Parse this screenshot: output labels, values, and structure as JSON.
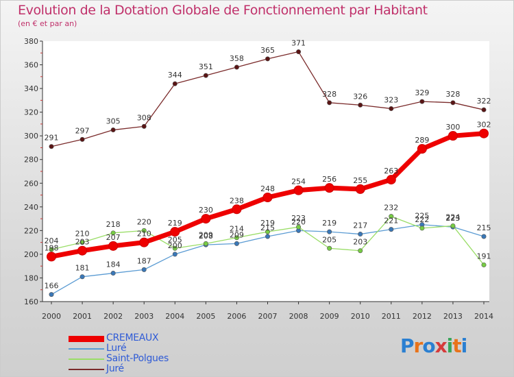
{
  "header": {
    "title": "Evolution de la Dotation Globale de Fonctionnement par Habitant",
    "subtitle": "(en € et par an)"
  },
  "brand": {
    "text": "Proxiti",
    "letters": [
      "P",
      "r",
      "o",
      "x",
      "i",
      "t",
      "i"
    ],
    "colors": [
      "#2a7fd1",
      "#e8731a",
      "#2a7fd1",
      "#d63a3a",
      "#3aa55a",
      "#e8731a",
      "#2a7fd1"
    ]
  },
  "chart_data": {
    "type": "line",
    "title": "Evolution de la Dotation Globale de Fonctionnement par Habitant",
    "subtitle": "(en € et par an)",
    "xlabel": "",
    "ylabel": "",
    "x": [
      "2000",
      "2001",
      "2002",
      "2003",
      "2004",
      "2005",
      "2006",
      "2007",
      "2008",
      "2009",
      "2010",
      "2011",
      "2012",
      "2013",
      "2014"
    ],
    "ylim": [
      160,
      380
    ],
    "yticks": [
      160,
      180,
      200,
      220,
      240,
      260,
      280,
      300,
      320,
      340,
      360,
      380
    ],
    "grid": false,
    "legend_position": "bottom-left",
    "series": [
      {
        "name": "CREMEAUX",
        "color": "#ee0000",
        "marker": "#ee0000",
        "emphasis": true,
        "values": [
          198,
          203,
          207,
          210,
          219,
          230,
          238,
          248,
          254,
          256,
          255,
          263,
          289,
          300,
          302
        ]
      },
      {
        "name": "Luré",
        "color": "#5a9bd3",
        "marker": "#3a78b8",
        "emphasis": false,
        "values": [
          166,
          181,
          184,
          187,
          200,
          208,
          209,
          215,
          220,
          219,
          217,
          221,
          225,
          223,
          215
        ]
      },
      {
        "name": "Saint-Polgues",
        "color": "#99dd66",
        "marker": "#77cc44",
        "emphasis": false,
        "values": [
          204,
          210,
          218,
          220,
          205,
          209,
          214,
          219,
          223,
          205,
          203,
          232,
          222,
          224,
          191
        ]
      },
      {
        "name": "Juré",
        "color": "#7a2a2a",
        "marker": "#5a1515",
        "emphasis": false,
        "values": [
          291,
          297,
          305,
          308,
          344,
          351,
          358,
          365,
          371,
          328,
          326,
          323,
          329,
          328,
          322
        ]
      }
    ]
  }
}
